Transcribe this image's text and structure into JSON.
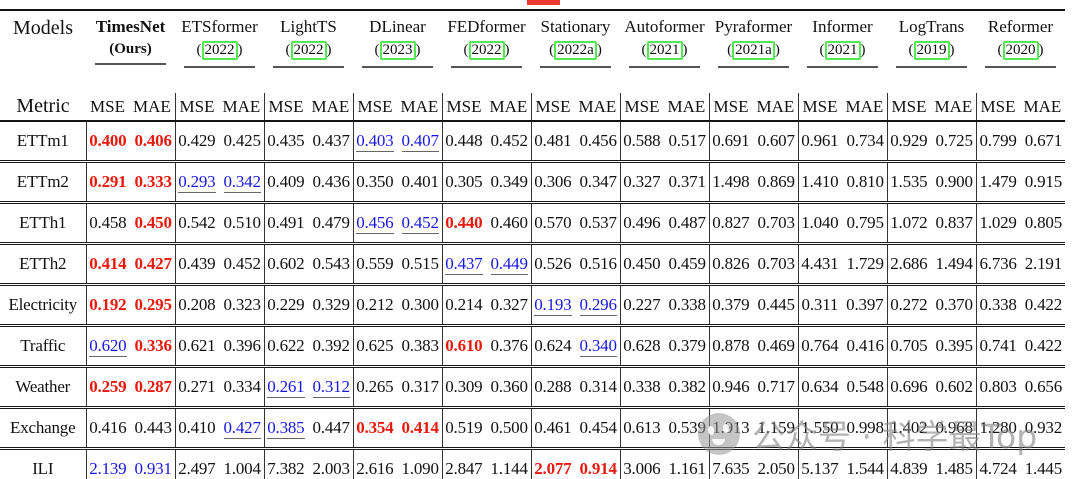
{
  "decorations": {
    "red_mark_present": true,
    "watermark": {
      "text": "公众号 · 科学最Top",
      "logo": "wechat-style-face"
    }
  },
  "colors": {
    "best_value": "#e8190b",
    "second_value": "#1717e3",
    "citation_box": "#55e855",
    "red_mark": "#ee3b2d"
  },
  "table": {
    "corner_top": "Models",
    "corner_bottom": "Metric",
    "metric_pair": [
      "MSE",
      "MAE"
    ],
    "models": [
      {
        "name": "TimesNet",
        "sub": "(Ours)",
        "boxed": false,
        "bold": true
      },
      {
        "name": "ETSformer",
        "sub": "2022",
        "boxed": true,
        "bold": false
      },
      {
        "name": "LightTS",
        "sub": "2022",
        "boxed": true,
        "bold": false
      },
      {
        "name": "DLinear",
        "sub": "2023",
        "boxed": true,
        "bold": false
      },
      {
        "name": "FEDformer",
        "sub": "2022",
        "boxed": true,
        "bold": false
      },
      {
        "name": "Stationary",
        "sub": "2022a",
        "boxed": true,
        "bold": false
      },
      {
        "name": "Autoformer",
        "sub": "2021",
        "boxed": true,
        "bold": false
      },
      {
        "name": "Pyraformer",
        "sub": "2021a",
        "boxed": true,
        "bold": false
      },
      {
        "name": "Informer",
        "sub": "2021",
        "boxed": true,
        "bold": false
      },
      {
        "name": "LogTrans",
        "sub": "2019",
        "boxed": true,
        "bold": false
      },
      {
        "name": "Reformer",
        "sub": "2020",
        "boxed": true,
        "bold": false
      }
    ],
    "style_legend": {
      "r": "best (red bold)",
      "b": "second best (blue underlined)",
      "": "normal"
    },
    "rows": [
      {
        "label": "ETTm1",
        "cells": [
          [
            "0.400",
            "0.406",
            "r",
            "r"
          ],
          [
            "0.429",
            "0.425",
            "",
            ""
          ],
          [
            "0.435",
            "0.437",
            "",
            ""
          ],
          [
            "0.403",
            "0.407",
            "b",
            "b"
          ],
          [
            "0.448",
            "0.452",
            "",
            ""
          ],
          [
            "0.481",
            "0.456",
            "",
            ""
          ],
          [
            "0.588",
            "0.517",
            "",
            ""
          ],
          [
            "0.691",
            "0.607",
            "",
            ""
          ],
          [
            "0.961",
            "0.734",
            "",
            ""
          ],
          [
            "0.929",
            "0.725",
            "",
            ""
          ],
          [
            "0.799",
            "0.671",
            "",
            ""
          ]
        ]
      },
      {
        "label": "ETTm2",
        "cells": [
          [
            "0.291",
            "0.333",
            "r",
            "r"
          ],
          [
            "0.293",
            "0.342",
            "b",
            "b"
          ],
          [
            "0.409",
            "0.436",
            "",
            ""
          ],
          [
            "0.350",
            "0.401",
            "",
            ""
          ],
          [
            "0.305",
            "0.349",
            "",
            ""
          ],
          [
            "0.306",
            "0.347",
            "",
            ""
          ],
          [
            "0.327",
            "0.371",
            "",
            ""
          ],
          [
            "1.498",
            "0.869",
            "",
            ""
          ],
          [
            "1.410",
            "0.810",
            "",
            ""
          ],
          [
            "1.535",
            "0.900",
            "",
            ""
          ],
          [
            "1.479",
            "0.915",
            "",
            ""
          ]
        ]
      },
      {
        "label": "ETTh1",
        "cells": [
          [
            "0.458",
            "0.450",
            "",
            "r"
          ],
          [
            "0.542",
            "0.510",
            "",
            ""
          ],
          [
            "0.491",
            "0.479",
            "",
            ""
          ],
          [
            "0.456",
            "0.452",
            "b",
            "b"
          ],
          [
            "0.440",
            "0.460",
            "r",
            ""
          ],
          [
            "0.570",
            "0.537",
            "",
            ""
          ],
          [
            "0.496",
            "0.487",
            "",
            ""
          ],
          [
            "0.827",
            "0.703",
            "",
            ""
          ],
          [
            "1.040",
            "0.795",
            "",
            ""
          ],
          [
            "1.072",
            "0.837",
            "",
            ""
          ],
          [
            "1.029",
            "0.805",
            "",
            ""
          ]
        ]
      },
      {
        "label": "ETTh2",
        "cells": [
          [
            "0.414",
            "0.427",
            "r",
            "r"
          ],
          [
            "0.439",
            "0.452",
            "",
            ""
          ],
          [
            "0.602",
            "0.543",
            "",
            ""
          ],
          [
            "0.559",
            "0.515",
            "",
            ""
          ],
          [
            "0.437",
            "0.449",
            "b",
            "b"
          ],
          [
            "0.526",
            "0.516",
            "",
            ""
          ],
          [
            "0.450",
            "0.459",
            "",
            ""
          ],
          [
            "0.826",
            "0.703",
            "",
            ""
          ],
          [
            "4.431",
            "1.729",
            "",
            ""
          ],
          [
            "2.686",
            "1.494",
            "",
            ""
          ],
          [
            "6.736",
            "2.191",
            "",
            ""
          ]
        ]
      },
      {
        "label": "Electricity",
        "cells": [
          [
            "0.192",
            "0.295",
            "r",
            "r"
          ],
          [
            "0.208",
            "0.323",
            "",
            ""
          ],
          [
            "0.229",
            "0.329",
            "",
            ""
          ],
          [
            "0.212",
            "0.300",
            "",
            ""
          ],
          [
            "0.214",
            "0.327",
            "",
            ""
          ],
          [
            "0.193",
            "0.296",
            "b",
            "b"
          ],
          [
            "0.227",
            "0.338",
            "",
            ""
          ],
          [
            "0.379",
            "0.445",
            "",
            ""
          ],
          [
            "0.311",
            "0.397",
            "",
            ""
          ],
          [
            "0.272",
            "0.370",
            "",
            ""
          ],
          [
            "0.338",
            "0.422",
            "",
            ""
          ]
        ]
      },
      {
        "label": "Traffic",
        "cells": [
          [
            "0.620",
            "0.336",
            "b",
            "r"
          ],
          [
            "0.621",
            "0.396",
            "",
            ""
          ],
          [
            "0.622",
            "0.392",
            "",
            ""
          ],
          [
            "0.625",
            "0.383",
            "",
            ""
          ],
          [
            "0.610",
            "0.376",
            "r",
            ""
          ],
          [
            "0.624",
            "0.340",
            "",
            "b"
          ],
          [
            "0.628",
            "0.379",
            "",
            ""
          ],
          [
            "0.878",
            "0.469",
            "",
            ""
          ],
          [
            "0.764",
            "0.416",
            "",
            ""
          ],
          [
            "0.705",
            "0.395",
            "",
            ""
          ],
          [
            "0.741",
            "0.422",
            "",
            ""
          ]
        ]
      },
      {
        "label": "Weather",
        "cells": [
          [
            "0.259",
            "0.287",
            "r",
            "r"
          ],
          [
            "0.271",
            "0.334",
            "",
            ""
          ],
          [
            "0.261",
            "0.312",
            "b",
            "b"
          ],
          [
            "0.265",
            "0.317",
            "",
            ""
          ],
          [
            "0.309",
            "0.360",
            "",
            ""
          ],
          [
            "0.288",
            "0.314",
            "",
            ""
          ],
          [
            "0.338",
            "0.382",
            "",
            ""
          ],
          [
            "0.946",
            "0.717",
            "",
            ""
          ],
          [
            "0.634",
            "0.548",
            "",
            ""
          ],
          [
            "0.696",
            "0.602",
            "",
            ""
          ],
          [
            "0.803",
            "0.656",
            "",
            ""
          ]
        ]
      },
      {
        "label": "Exchange",
        "cells": [
          [
            "0.416",
            "0.443",
            "",
            ""
          ],
          [
            "0.410",
            "0.427",
            "",
            "b"
          ],
          [
            "0.385",
            "0.447",
            "b",
            ""
          ],
          [
            "0.354",
            "0.414",
            "r",
            "r"
          ],
          [
            "0.519",
            "0.500",
            "",
            ""
          ],
          [
            "0.461",
            "0.454",
            "",
            ""
          ],
          [
            "0.613",
            "0.539",
            "",
            ""
          ],
          [
            "1.913",
            "1.159",
            "",
            ""
          ],
          [
            "1.550",
            "0.998",
            "",
            ""
          ],
          [
            "1.402",
            "0.968",
            "",
            ""
          ],
          [
            "1.280",
            "0.932",
            "",
            ""
          ]
        ]
      },
      {
        "label": "ILI",
        "cells": [
          [
            "2.139",
            "0.931",
            "b",
            "b"
          ],
          [
            "2.497",
            "1.004",
            "",
            ""
          ],
          [
            "7.382",
            "2.003",
            "",
            ""
          ],
          [
            "2.616",
            "1.090",
            "",
            ""
          ],
          [
            "2.847",
            "1.144",
            "",
            ""
          ],
          [
            "2.077",
            "0.914",
            "r",
            "r"
          ],
          [
            "3.006",
            "1.161",
            "",
            ""
          ],
          [
            "7.635",
            "2.050",
            "",
            ""
          ],
          [
            "5.137",
            "1.544",
            "",
            ""
          ],
          [
            "4.839",
            "1.485",
            "",
            ""
          ],
          [
            "4.724",
            "1.445",
            "",
            ""
          ]
        ]
      }
    ]
  }
}
